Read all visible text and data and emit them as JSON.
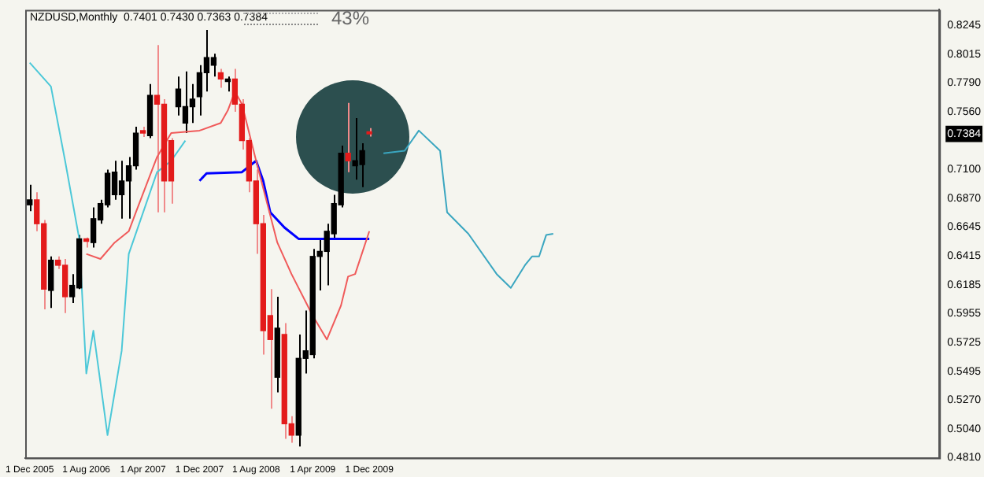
{
  "chart_data": {
    "type": "candlestick",
    "title": "NZDUSD,Monthly  0.7401 0.7430 0.7363 0.7384",
    "annotations": [
      "43%"
    ],
    "x": [
      "2005-12",
      "2006-01",
      "2006-02",
      "2006-03",
      "2006-04",
      "2006-05",
      "2006-06",
      "2006-07",
      "2006-08",
      "2006-09",
      "2006-10",
      "2006-11",
      "2006-12",
      "2007-01",
      "2007-02",
      "2007-03",
      "2007-04",
      "2007-05",
      "2007-06",
      "2007-07",
      "2007-08",
      "2007-09",
      "2007-10",
      "2007-11",
      "2007-12",
      "2008-01",
      "2008-02",
      "2008-03",
      "2008-04",
      "2008-05",
      "2008-06",
      "2008-07",
      "2008-08",
      "2008-09",
      "2008-10",
      "2008-11",
      "2008-12",
      "2009-01",
      "2009-02",
      "2009-03",
      "2009-04",
      "2009-05",
      "2009-06",
      "2009-07",
      "2009-08",
      "2009-09",
      "2009-10",
      "2009-11",
      "2009-12"
    ],
    "ohlc": [
      [
        0.682,
        0.698,
        0.677,
        0.686
      ],
      [
        0.686,
        0.692,
        0.661,
        0.667
      ],
      [
        0.667,
        0.67,
        0.599,
        0.615
      ],
      [
        0.614,
        0.641,
        0.6,
        0.638
      ],
      [
        0.638,
        0.641,
        0.631,
        0.634
      ],
      [
        0.634,
        0.639,
        0.596,
        0.609
      ],
      [
        0.609,
        0.627,
        0.604,
        0.618
      ],
      [
        0.616,
        0.658,
        0.615,
        0.655
      ],
      [
        0.655,
        0.656,
        0.648,
        0.653
      ],
      [
        0.652,
        0.68,
        0.648,
        0.671
      ],
      [
        0.67,
        0.686,
        0.667,
        0.683
      ],
      [
        0.682,
        0.71,
        0.68,
        0.707
      ],
      [
        0.69,
        0.717,
        0.686,
        0.708
      ],
      [
        0.69,
        0.717,
        0.671,
        0.701
      ],
      [
        0.701,
        0.72,
        0.671,
        0.713
      ],
      [
        0.713,
        0.744,
        0.71,
        0.739
      ],
      [
        0.741,
        0.744,
        0.736,
        0.739
      ],
      [
        0.737,
        0.778,
        0.735,
        0.769
      ],
      [
        0.769,
        0.809,
        0.676,
        0.762
      ],
      [
        0.762,
        0.766,
        0.676,
        0.701
      ],
      [
        0.733,
        0.735,
        0.683,
        0.701
      ],
      [
        0.76,
        0.784,
        0.753,
        0.774
      ],
      [
        0.747,
        0.788,
        0.739,
        0.76
      ],
      [
        0.76,
        0.778,
        0.747,
        0.766
      ],
      [
        0.768,
        0.793,
        0.753,
        0.787
      ],
      [
        0.787,
        0.821,
        0.772,
        0.799
      ],
      [
        0.793,
        0.802,
        0.784,
        0.799
      ],
      [
        0.787,
        0.79,
        0.775,
        0.782
      ],
      [
        0.78,
        0.784,
        0.772,
        0.782
      ],
      [
        0.782,
        0.79,
        0.756,
        0.762
      ],
      [
        0.762,
        0.766,
        0.726,
        0.733
      ],
      [
        0.733,
        0.735,
        0.692,
        0.701
      ],
      [
        0.701,
        0.71,
        0.643,
        0.667
      ],
      [
        0.667,
        0.674,
        0.563,
        0.582
      ],
      [
        0.594,
        0.615,
        0.52,
        0.575
      ],
      [
        0.545,
        0.609,
        0.533,
        0.584
      ],
      [
        0.579,
        0.588,
        0.496,
        0.508
      ],
      [
        0.508,
        0.514,
        0.493,
        0.499
      ],
      [
        0.499,
        0.579,
        0.49,
        0.56
      ],
      [
        0.56,
        0.598,
        0.548,
        0.566
      ],
      [
        0.563,
        0.647,
        0.56,
        0.641
      ],
      [
        0.641,
        0.655,
        0.614,
        0.645
      ],
      [
        0.645,
        0.667,
        0.618,
        0.661
      ],
      [
        0.659,
        0.69,
        0.655,
        0.683
      ],
      [
        0.682,
        0.729,
        0.68,
        0.723
      ],
      [
        0.723,
        0.763,
        0.708,
        0.717
      ],
      [
        0.713,
        0.751,
        0.702,
        0.717
      ],
      [
        0.714,
        0.731,
        0.696,
        0.725
      ],
      [
        0.7401,
        0.743,
        0.7363,
        0.7384
      ]
    ],
    "colors": [
      "#000000",
      "#e31b1b",
      "#e31b1b",
      "#000000",
      "#e31b1b",
      "#e31b1b",
      "#000000",
      "#000000",
      "#e31b1b",
      "#000000",
      "#000000",
      "#000000",
      "#000000",
      "#000000",
      "#000000",
      "#000000",
      "#e31b1b",
      "#000000",
      "#e31b1b",
      "#e31b1b",
      "#e31b1b",
      "#000000",
      "#000000",
      "#000000",
      "#000000",
      "#000000",
      "#000000",
      "#e31b1b",
      "#000000",
      "#e31b1b",
      "#e31b1b",
      "#e31b1b",
      "#e31b1b",
      "#e31b1b",
      "#e31b1b",
      "#000000",
      "#e31b1b",
      "#e31b1b",
      "#000000",
      "#000000",
      "#000000",
      "#000000",
      "#000000",
      "#000000",
      "#000000",
      "#e31b1b",
      "#000000",
      "#000000",
      "#e31b1b"
    ],
    "series": [
      {
        "type": "line",
        "color": "#f05a5a",
        "x": [
          "2006-08",
          "2006-10",
          "2006-12",
          "2007-02",
          "2007-03",
          "2007-06",
          "2007-08",
          "2007-12",
          "2008-03",
          "2008-04",
          "2008-05",
          "2008-06",
          "2008-08",
          "2008-11",
          "2009-01",
          "2009-04",
          "2009-06",
          "2009-08",
          "2009-09",
          "2009-10",
          "2009-12"
        ],
        "values": [
          0.643,
          0.639,
          0.652,
          0.661,
          0.676,
          0.72,
          0.739,
          0.741,
          0.747,
          0.757,
          0.772,
          0.762,
          0.717,
          0.652,
          0.627,
          0.594,
          0.575,
          0.602,
          0.625,
          0.627,
          0.661
        ]
      },
      {
        "type": "line",
        "color": "#0000ff",
        "x": [
          "2007-12",
          "2008-01",
          "2008-06",
          "2008-08",
          "2008-09",
          "2008-10",
          "2008-12",
          "2009-02",
          "2009-12"
        ],
        "values": [
          0.701,
          0.707,
          0.708,
          0.717,
          0.701,
          0.676,
          0.664,
          0.655,
          0.655
        ]
      },
      {
        "type": "line",
        "color": "#4cc8d8",
        "x": [
          "2005-12",
          "2006-03",
          "2006-05",
          "2006-07",
          "2006-08",
          "2006-09",
          "2006-11",
          "2007-01",
          "2007-02",
          "2007-06",
          "2007-08",
          "2007-10"
        ],
        "values": [
          0.795,
          0.776,
          0.717,
          0.655,
          0.548,
          0.582,
          0.499,
          0.566,
          0.643,
          0.708,
          0.717,
          0.733
        ]
      },
      {
        "type": "line",
        "color": "#3aa6c0",
        "x": [
          "2010-02",
          "2010-05",
          "2010-07",
          "2010-10",
          "2010-11",
          "2011-02",
          "2011-06",
          "2011-08",
          "2011-10",
          "2011-11",
          "2011-12",
          "2012-01",
          "2012-02"
        ],
        "values": [
          0.723,
          0.725,
          0.741,
          0.725,
          0.676,
          0.659,
          0.627,
          0.616,
          0.634,
          0.641,
          0.641,
          0.658,
          0.659
        ]
      }
    ],
    "xlim": [
      "2005-11-12",
      "2016-08-18"
    ],
    "xticks": [
      {
        "value": "2005-12",
        "label": "1 Dec 2005"
      },
      {
        "value": "2006-08",
        "label": "1 Aug 2006"
      },
      {
        "value": "2007-04",
        "label": "1 Apr 2007"
      },
      {
        "value": "2007-12",
        "label": "1 Dec 2007"
      },
      {
        "value": "2008-08",
        "label": "1 Aug 2008"
      },
      {
        "value": "2009-04",
        "label": "1 Apr 2009"
      },
      {
        "value": "2009-12",
        "label": "1 Dec 2009"
      }
    ],
    "ylim": [
      0.481,
      0.837
    ],
    "yticks": [
      {
        "value": 0.8245,
        "label": "0.8245"
      },
      {
        "value": 0.8015,
        "label": "0.8015"
      },
      {
        "value": 0.779,
        "label": "0.7790"
      },
      {
        "value": 0.756,
        "label": "0.7560"
      },
      {
        "value": 0.7384,
        "label": "0.7384"
      },
      {
        "value": 0.71,
        "label": "0.7100"
      },
      {
        "value": 0.687,
        "label": "0.6870"
      },
      {
        "value": 0.6645,
        "label": "0.6645"
      },
      {
        "value": 0.6415,
        "label": "0.6415"
      },
      {
        "value": 0.6185,
        "label": "0.6185"
      },
      {
        "value": 0.5955,
        "label": "0.5955"
      },
      {
        "value": 0.5725,
        "label": "0.5725"
      },
      {
        "value": 0.5495,
        "label": "0.5495"
      },
      {
        "value": 0.527,
        "label": "0.5270"
      },
      {
        "value": 0.504,
        "label": "0.5040"
      },
      {
        "value": 0.481,
        "label": "0.4810"
      }
    ]
  }
}
